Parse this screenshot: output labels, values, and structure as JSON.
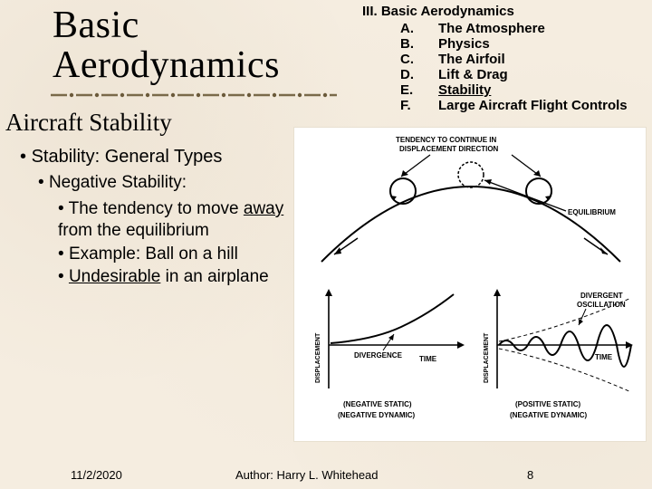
{
  "title": "Basic Aerodynamics",
  "subtitle": "Aircraft Stability",
  "divider": {
    "dash_color": "#7a6a4a",
    "dot_color": "#6b5a3a",
    "dash_width": 18,
    "gap": 10,
    "dot_radius": 2.2
  },
  "outline": {
    "head": "III. Basic Aerodynamics",
    "items": [
      {
        "letter": "A.",
        "text": "The Atmosphere",
        "underline": false
      },
      {
        "letter": "B.",
        "text": "Physics",
        "underline": false
      },
      {
        "letter": "C.",
        "text": "The Airfoil",
        "underline": false
      },
      {
        "letter": "D.",
        "text": "Lift & Drag",
        "underline": false
      },
      {
        "letter": "E.",
        "text": "Stability",
        "underline": true
      },
      {
        "letter": "F.",
        "text": "Large Aircraft Flight Controls",
        "underline": false
      }
    ]
  },
  "content": {
    "l1": "Stability:  General Types",
    "l2": "Negative Stability:",
    "l3a_pre": "The tendency to move ",
    "l3a_u": "away",
    "l3a_post": " from the equilibrium",
    "l3b": "Example:  Ball on a hill",
    "l3c_u": "Undesirable",
    "l3c_post": " in an airplane"
  },
  "figure": {
    "bg": "#ffffff",
    "stroke": "#000000",
    "top": {
      "label_tendency_1": "TENDENCY TO CONTINUE IN",
      "label_tendency_2": "DISPLACEMENT DIRECTION",
      "label_equilibrium": "EQUILIBRIUM"
    },
    "left_graph": {
      "ylabel": "DISPLACEMENT",
      "xlabel": "TIME",
      "curve_label": "DIVERGENCE",
      "caption1": "(NEGATIVE STATIC)",
      "caption2": "(NEGATIVE DYNAMIC)"
    },
    "right_graph": {
      "ylabel": "DISPLACEMENT",
      "xlabel": "TIME",
      "curve_label1": "DIVERGENT",
      "curve_label2": "OSCILLATION",
      "caption1": "(POSITIVE STATIC)",
      "caption2": "(NEGATIVE DYNAMIC)"
    }
  },
  "footer": {
    "date": "11/2/2020",
    "author": "Author:  Harry L. Whitehead",
    "page": "8"
  }
}
